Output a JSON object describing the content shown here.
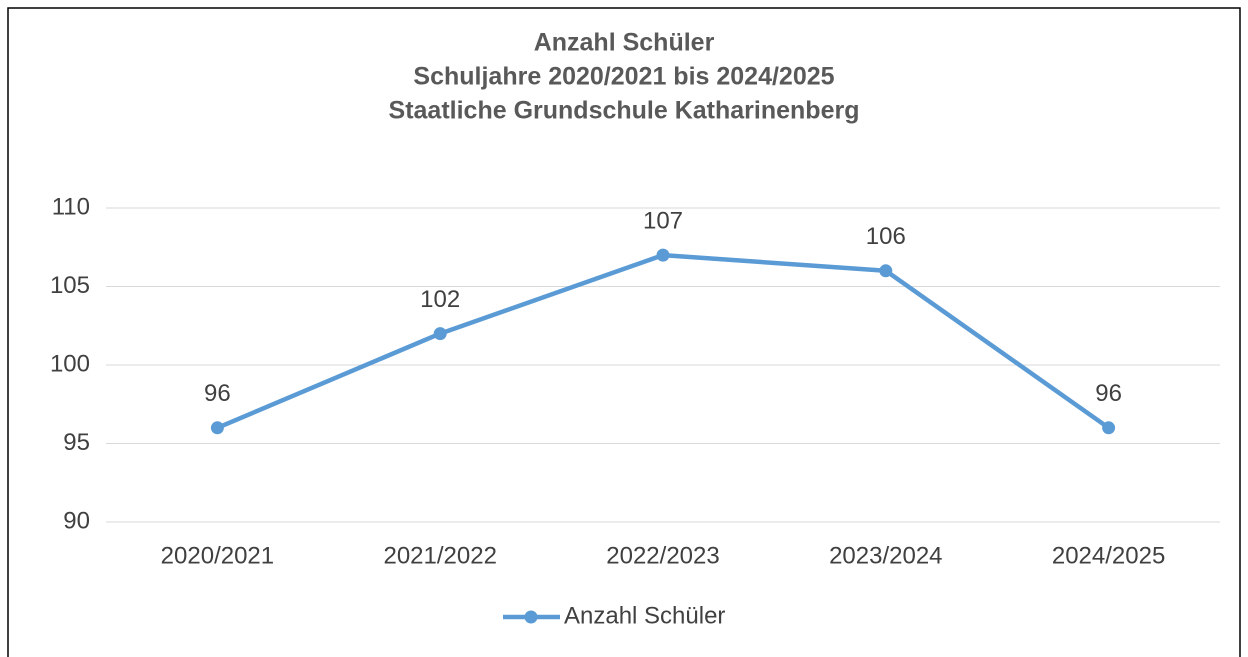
{
  "chart_data": {
    "type": "line",
    "title": [
      "Anzahl Schüler",
      "Schuljahre 2020/2021 bis 2024/2025",
      "Staatliche Grundschule Katharinenberg"
    ],
    "categories": [
      "2020/2021",
      "2021/2022",
      "2022/2023",
      "2023/2024",
      "2024/2025"
    ],
    "series": [
      {
        "name": "Anzahl Schüler",
        "color": "#5b9bd5",
        "values": [
          96,
          102,
          107,
          106,
          96
        ]
      }
    ],
    "ylim": [
      90,
      110
    ],
    "yticks": [
      90,
      95,
      100,
      105,
      110
    ],
    "grid": true,
    "legend": "bottom"
  }
}
